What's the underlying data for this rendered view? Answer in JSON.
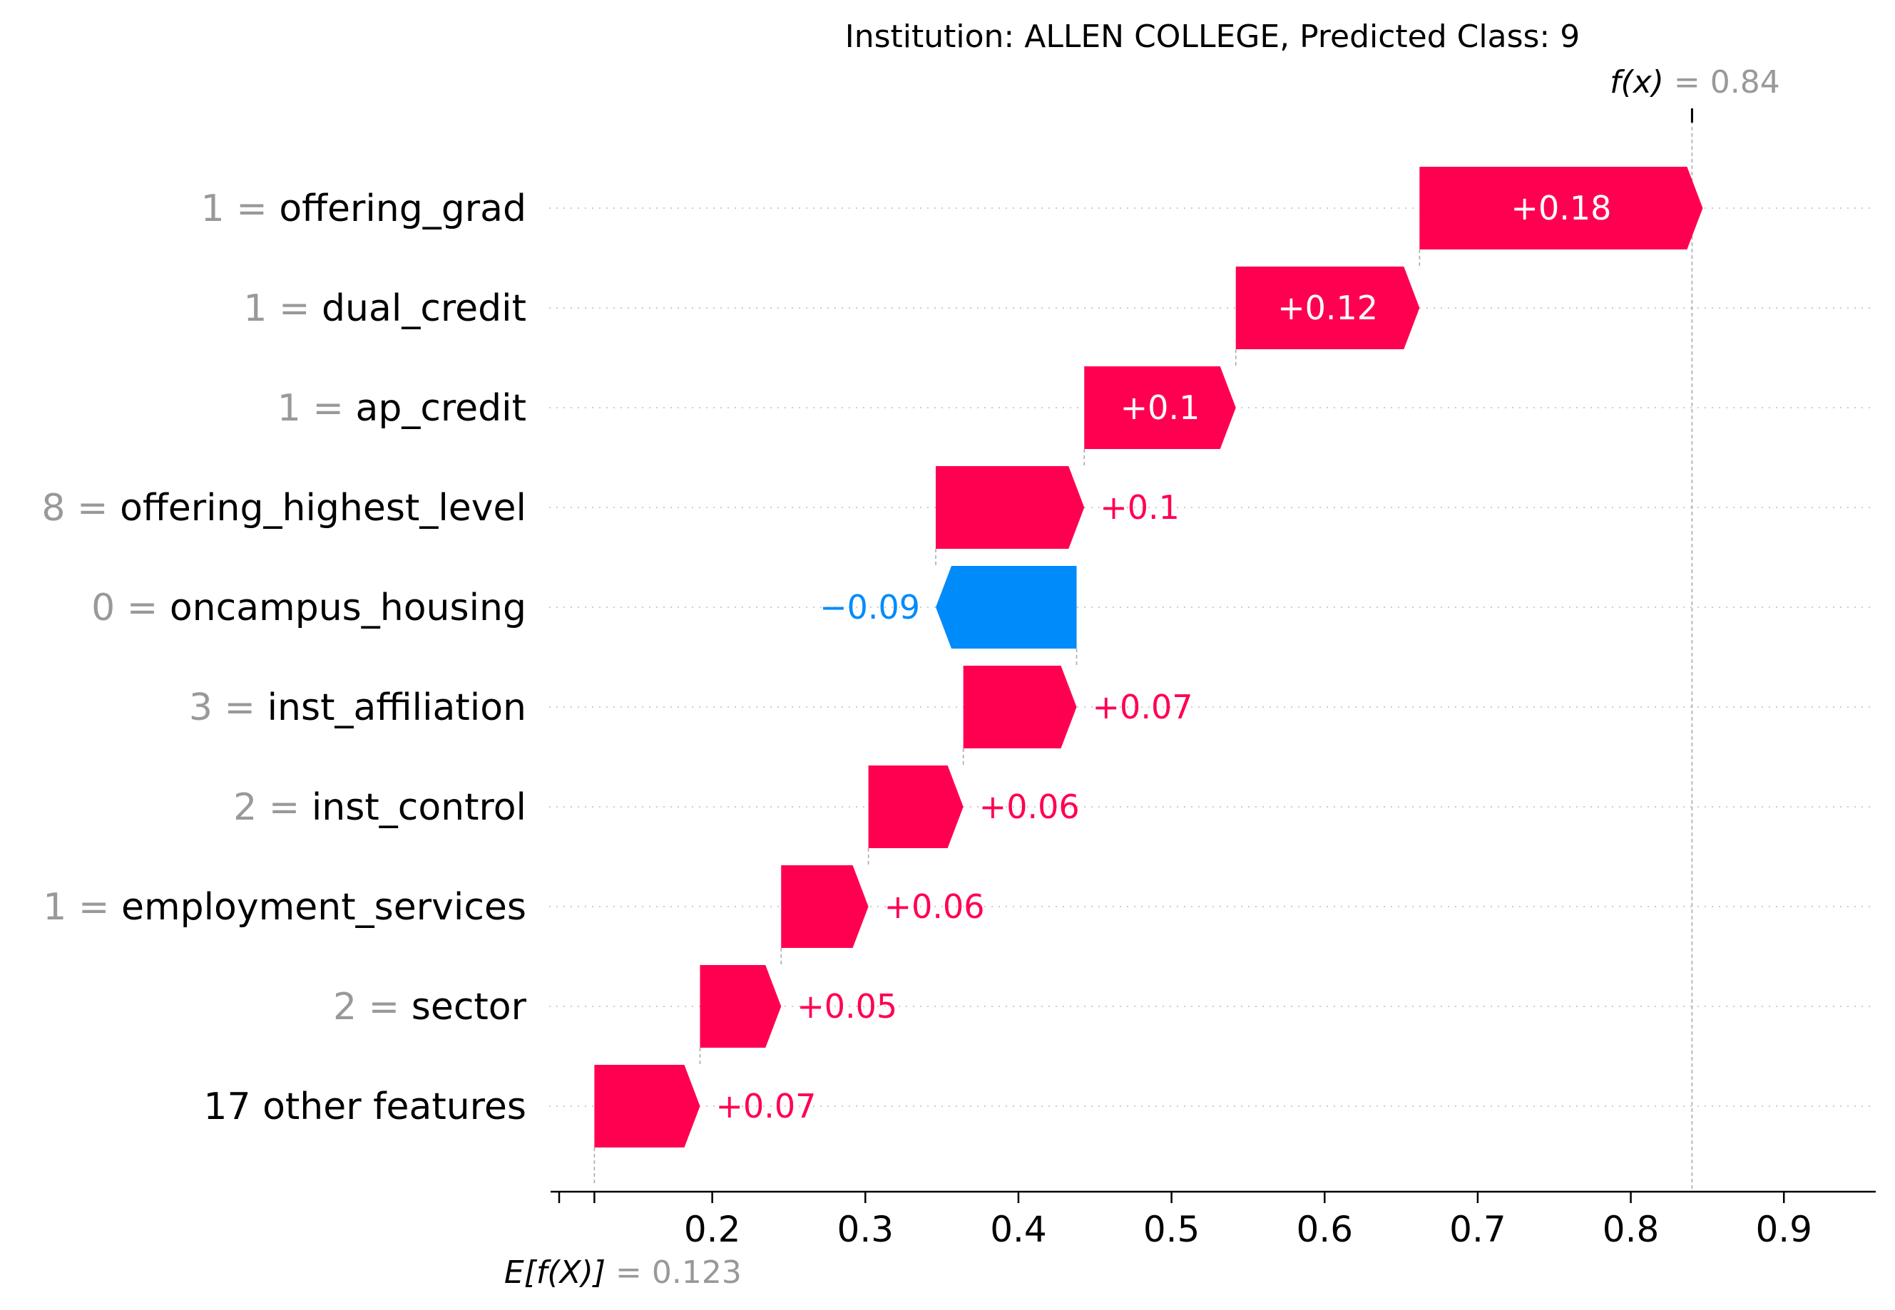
{
  "chart_data": {
    "type": "waterfall",
    "title": "Institution: ALLEN COLLEGE, Predicted Class: 9",
    "base_value": 0.123,
    "base_value_label": "E[f(X)]",
    "base_value_text": "= 0.123",
    "output_value": 0.84,
    "output_value_label": "f(x)",
    "output_value_text": "= 0.84",
    "xlim": [
      0.1,
      0.96
    ],
    "xticks": [
      0.1,
      0.2,
      0.3,
      0.4,
      0.5,
      0.6,
      0.7,
      0.8,
      0.9
    ],
    "xtick_labels": [
      "",
      "0.2",
      "0.3",
      "0.4",
      "0.5",
      "0.6",
      "0.7",
      "0.8",
      "0.9"
    ],
    "features": [
      {
        "value": "1",
        "name": "offering_grad",
        "contribution": 0.185,
        "label": "+0.18"
      },
      {
        "value": "1",
        "name": "dual_credit",
        "contribution": 0.12,
        "label": "+0.12"
      },
      {
        "value": "1",
        "name": "ap_credit",
        "contribution": 0.099,
        "label": "+0.1"
      },
      {
        "value": "8",
        "name": "offering_highest_level",
        "contribution": 0.097,
        "label": "+0.1"
      },
      {
        "value": "0",
        "name": "oncampus_housing",
        "contribution": -0.092,
        "label": "−0.09"
      },
      {
        "value": "3",
        "name": "inst_affiliation",
        "contribution": 0.074,
        "label": "+0.07"
      },
      {
        "value": "2",
        "name": "inst_control",
        "contribution": 0.062,
        "label": "+0.06"
      },
      {
        "value": "1",
        "name": "employment_services",
        "contribution": 0.057,
        "label": "+0.06"
      },
      {
        "value": "2",
        "name": "sector",
        "contribution": 0.053,
        "label": "+0.05"
      },
      {
        "value": "",
        "name": "17 other features",
        "contribution": 0.069,
        "label": "+0.07"
      }
    ],
    "colors": {
      "positive": "#ff0051",
      "negative": "#008bfb",
      "value_prefix": "#999999",
      "gridline": "#cccccc"
    }
  }
}
